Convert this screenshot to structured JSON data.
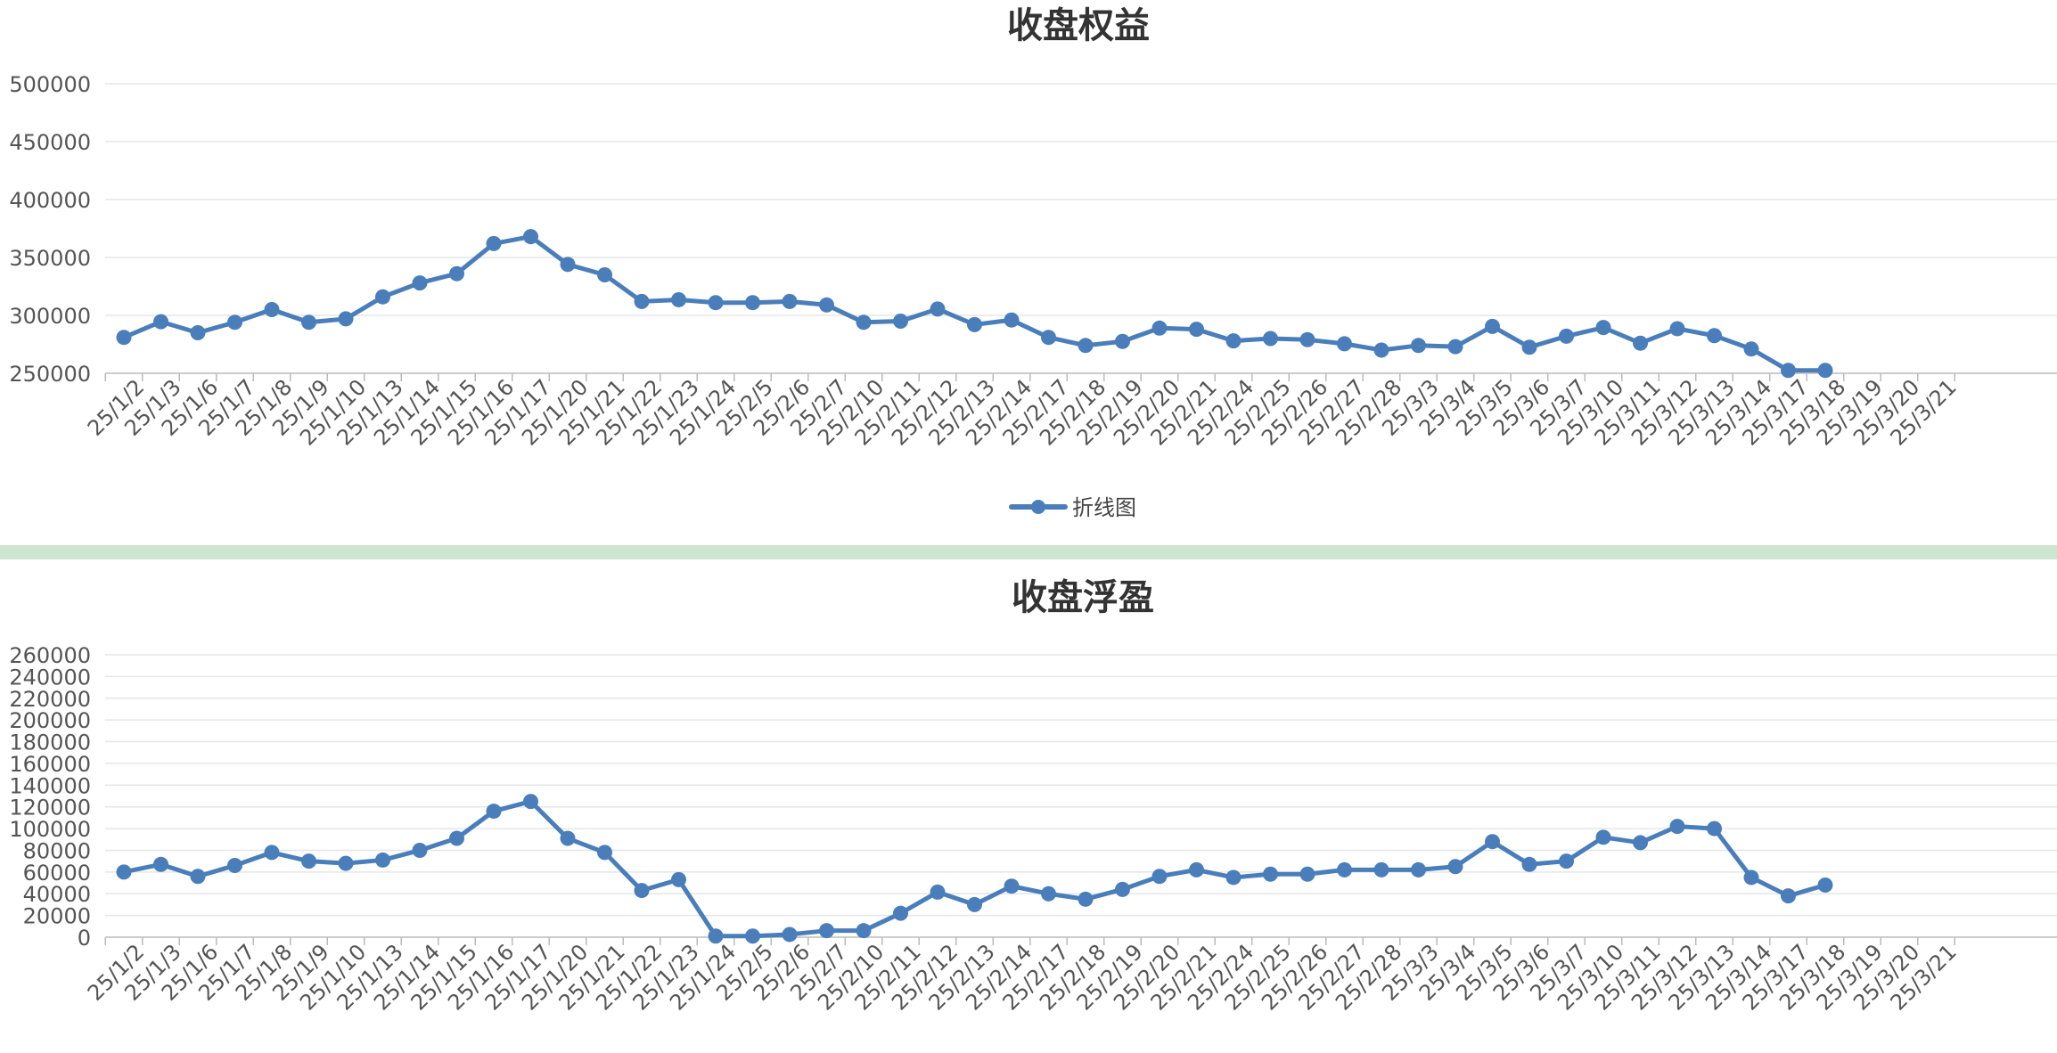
{
  "colors": {
    "line": "#4a7ebb",
    "grid": "#e6e6e6",
    "axis": "#bbbbbb",
    "divider": "#cde6cf"
  },
  "chart_data": [
    {
      "type": "line",
      "title": "收盘权益",
      "ylim": [
        250000,
        500000
      ],
      "yticks": [
        250000,
        300000,
        350000,
        400000,
        450000,
        500000
      ],
      "grid": true,
      "legend": {
        "label": "折线图",
        "position": "bottom-center"
      },
      "categories": [
        "25/1/2",
        "25/1/3",
        "25/1/6",
        "25/1/7",
        "25/1/8",
        "25/1/9",
        "25/1/10",
        "25/1/13",
        "25/1/14",
        "25/1/15",
        "25/1/16",
        "25/1/17",
        "25/1/20",
        "25/1/21",
        "25/1/22",
        "25/1/23",
        "25/1/24",
        "25/2/5",
        "25/2/6",
        "25/2/7",
        "25/2/10",
        "25/2/11",
        "25/2/12",
        "25/2/13",
        "25/2/14",
        "25/2/17",
        "25/2/18",
        "25/2/19",
        "25/2/20",
        "25/2/21",
        "25/2/24",
        "25/2/25",
        "25/2/26",
        "25/2/27",
        "25/2/28",
        "25/3/3",
        "25/3/4",
        "25/3/5",
        "25/3/6",
        "25/3/7",
        "25/3/10",
        "25/3/11",
        "25/3/12",
        "25/3/13",
        "25/3/14",
        "25/3/17",
        "25/3/18",
        "25/3/19",
        "25/3/20",
        "25/3/21"
      ],
      "series": [
        {
          "name": "折线图",
          "values": [
            281000,
            294500,
            285000,
            294000,
            305000,
            294000,
            297000,
            316000,
            328000,
            336000,
            362000,
            368000,
            344000,
            335000,
            312000,
            313500,
            311000,
            311000,
            312000,
            309000,
            294000,
            295000,
            305500,
            292000,
            296000,
            281000,
            274000,
            277500,
            289000,
            288000,
            278000,
            280000,
            279000,
            275500,
            270000,
            274000,
            273000,
            290500,
            272500,
            282000,
            289500,
            276000,
            288500,
            282500,
            271000,
            252500,
            252500,
            null,
            null,
            null
          ]
        }
      ]
    },
    {
      "type": "line",
      "title": "收盘浮盈",
      "ylim": [
        0,
        260000
      ],
      "yticks": [
        0,
        20000,
        40000,
        60000,
        80000,
        100000,
        120000,
        140000,
        160000,
        180000,
        200000,
        220000,
        240000,
        260000
      ],
      "grid": true,
      "categories": [
        "25/1/2",
        "25/1/3",
        "25/1/6",
        "25/1/7",
        "25/1/8",
        "25/1/9",
        "25/1/10",
        "25/1/13",
        "25/1/14",
        "25/1/15",
        "25/1/16",
        "25/1/17",
        "25/1/20",
        "25/1/21",
        "25/1/22",
        "25/1/23",
        "25/1/24",
        "25/2/5",
        "25/2/6",
        "25/2/7",
        "25/2/10",
        "25/2/11",
        "25/2/12",
        "25/2/13",
        "25/2/14",
        "25/2/17",
        "25/2/18",
        "25/2/19",
        "25/2/20",
        "25/2/21",
        "25/2/24",
        "25/2/25",
        "25/2/26",
        "25/2/27",
        "25/2/28",
        "25/3/3",
        "25/3/4",
        "25/3/5",
        "25/3/6",
        "25/3/7",
        "25/3/10",
        "25/3/11",
        "25/3/12",
        "25/3/13",
        "25/3/14",
        "25/3/17",
        "25/3/18",
        "25/3/19",
        "25/3/20",
        "25/3/21"
      ],
      "series": [
        {
          "values": [
            60000,
            67000,
            56000,
            66000,
            78000,
            70000,
            68000,
            71000,
            80000,
            91000,
            116000,
            125000,
            91000,
            78000,
            43000,
            53000,
            1000,
            1000,
            2500,
            6000,
            6000,
            22000,
            41500,
            30000,
            47000,
            40000,
            35000,
            44000,
            56000,
            62000,
            55000,
            58000,
            58000,
            62000,
            62000,
            62000,
            65000,
            88000,
            67000,
            70000,
            92000,
            87000,
            102000,
            100000,
            55000,
            38000,
            48000,
            null,
            null,
            null
          ]
        }
      ]
    }
  ]
}
